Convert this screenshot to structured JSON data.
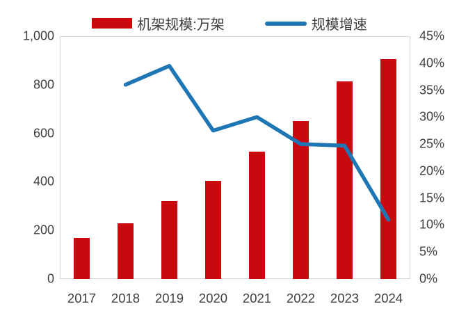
{
  "legend": {
    "items": [
      {
        "label": "机架规模:万架",
        "swatch": "bar-swatch",
        "color": "#c8090d"
      },
      {
        "label": "规模增速",
        "swatch": "line-swatch",
        "color": "#1e76b4"
      }
    ],
    "position": "top-center"
  },
  "chart_data": {
    "type": "bar+line combo",
    "categories": [
      "2017",
      "2018",
      "2019",
      "2020",
      "2021",
      "2022",
      "2023",
      "2024"
    ],
    "series": [
      {
        "name": "机架规模:万架",
        "type": "bar",
        "axis": "left",
        "color": "#c8090d",
        "values": [
          170,
          230,
          320,
          405,
          525,
          650,
          815,
          905
        ]
      },
      {
        "name": "规模增速",
        "type": "line",
        "axis": "right",
        "color": "#1e76b4",
        "values": [
          null,
          36,
          39.5,
          27.5,
          30,
          25,
          24.7,
          11
        ],
        "unit": "%"
      }
    ],
    "left_axis": {
      "min": 0,
      "max": 1000,
      "step": 200,
      "ticks": [
        "1,000",
        "800",
        "600",
        "400",
        "200",
        "0"
      ]
    },
    "right_axis": {
      "min": 0,
      "max": 45,
      "step": 5,
      "ticks": [
        "45%",
        "40%",
        "35%",
        "30%",
        "25%",
        "20%",
        "15%",
        "10%",
        "5%",
        "0%"
      ]
    },
    "grid": false,
    "plot_border_color": "#d8d8d8",
    "axis_text_color": "#404040",
    "legend_position": "top"
  }
}
